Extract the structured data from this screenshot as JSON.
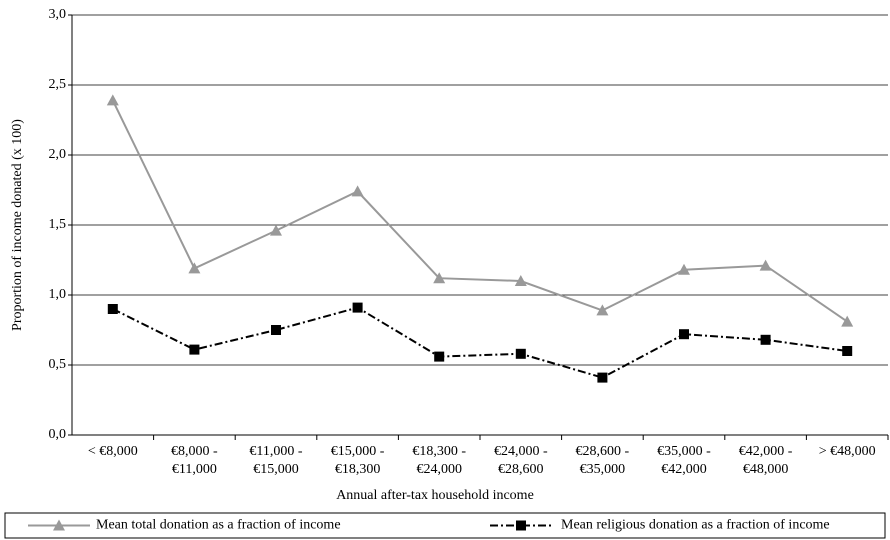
{
  "chart_data": {
    "type": "line",
    "x_label": "Annual after-tax household income",
    "y_label": "Proportion of income donated (x 100)",
    "categories": [
      "< €8,000",
      "€8,000 -\n€11,000",
      "€11,000 -\n€15,000",
      "€15,000 -\n€18,300",
      "€18,300 -\n€24,000",
      "€24,000 -\n€28,600",
      "€28,600 -\n€35,000",
      "€35,000 -\n€42,000",
      "€42,000 -\n€48,000",
      "> €48,000"
    ],
    "series": [
      {
        "name": "Mean total donation as a fraction of income",
        "color": "#999999",
        "marker": "triangle",
        "dash": "solid",
        "values": [
          2.39,
          1.19,
          1.46,
          1.74,
          1.12,
          1.1,
          0.89,
          1.18,
          1.21,
          0.81
        ]
      },
      {
        "name": "Mean religious donation as a fraction of income",
        "color": "#000000",
        "marker": "square",
        "dash": "dashdot",
        "values": [
          0.9,
          0.61,
          0.75,
          0.91,
          0.56,
          0.58,
          0.41,
          0.72,
          0.68,
          0.6
        ]
      }
    ],
    "ylim": [
      0,
      3
    ],
    "yticks": [
      {
        "value": 0,
        "label": "0,0"
      },
      {
        "value": 0.5,
        "label": "0,5"
      },
      {
        "value": 1,
        "label": "1,0"
      },
      {
        "value": 1.5,
        "label": "1,5"
      },
      {
        "value": 2,
        "label": "2,0"
      },
      {
        "value": 2.5,
        "label": "2,5"
      },
      {
        "value": 3,
        "label": "3,0"
      }
    ],
    "grid": true,
    "legend": "bottom"
  }
}
